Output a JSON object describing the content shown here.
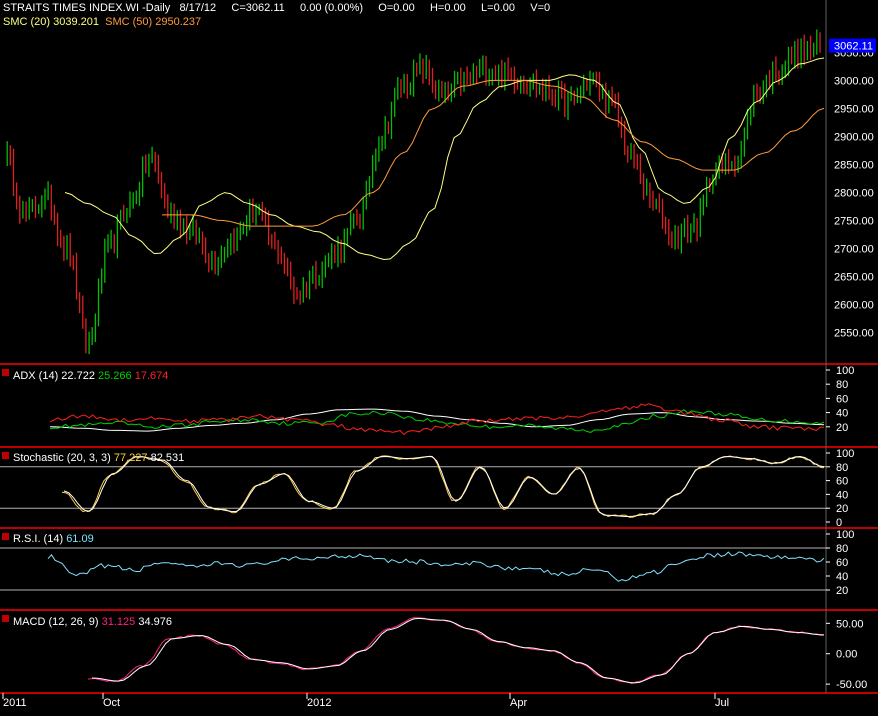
{
  "header": {
    "title": "STRAITS TIMES INDEX.WI -Daily",
    "date": "8/17/12",
    "close": "C=3062.11",
    "change": "0.00 (0.00%)",
    "open": "O=0.00",
    "high": "H=0.00",
    "low": "L=0.00",
    "volume": "V=0",
    "sma20_label": "SMC (20)",
    "sma20_value": "3039.201",
    "sma50_label": "SMC (50)",
    "sma50_value": "2950.237",
    "last_price": "3062.11"
  },
  "colors": {
    "up": "#00c000",
    "down": "#e02020",
    "sma20": "#ffff80",
    "sma50": "#ff9a3c",
    "separator": "#c00000",
    "price_box": "#0000ff",
    "adx": "#ffffff",
    "dip": "#00d000",
    "dim": "#ff2020",
    "stoch_k": "#ffd040",
    "stoch_d": "#ffffff",
    "rsi": "#80e0ff",
    "macd": "#ffffff",
    "macd_signal": "#ff2080"
  },
  "panels": {
    "adx": {
      "name": "ADX (14)",
      "adx": "22.722",
      "dip": "25.266",
      "dim": "17.674",
      "ticks": [
        "100",
        "80",
        "60",
        "40",
        "20"
      ]
    },
    "stoch": {
      "name": "Stochastic (20, 3, 3)",
      "k": "77.227",
      "d": "82.531",
      "ticks": [
        "100",
        "80",
        "60",
        "40",
        "20",
        "0"
      ]
    },
    "rsi": {
      "name": "R.S.I. (14)",
      "value": "61.09",
      "ticks": [
        "100",
        "80",
        "60",
        "40",
        "20"
      ]
    },
    "macd": {
      "name": "MACD (12, 26, 9)",
      "macd": "31.125",
      "signal": "34.976",
      "ticks": [
        "50.00",
        "0.00",
        "-50.00"
      ]
    }
  },
  "x_axis": [
    "2011",
    "Oct",
    "2012",
    "Apr",
    "Jul"
  ],
  "chart_data": {
    "type": "candlestick",
    "title": "STRAITS TIMES INDEX.WI -Daily",
    "x_range": [
      "2011-08",
      "2012-08-17"
    ],
    "ylim": [
      2510,
      3090
    ],
    "price_ticks": [
      "3050.00",
      "3000.00",
      "2950.00",
      "2900.00",
      "2850.00",
      "2800.00",
      "2750.00",
      "2700.00",
      "2650.00",
      "2600.00",
      "2550.00"
    ],
    "price_anchors": [
      2870,
      2760,
      2790,
      2700,
      2530,
      2700,
      2780,
      2860,
      2760,
      2730,
      2680,
      2720,
      2770,
      2700,
      2620,
      2660,
      2700,
      2760,
      2900,
      2990,
      3020,
      2970,
      3000,
      3020,
      3010,
      3000,
      2980,
      2960,
      3000,
      2960,
      2860,
      2780,
      2720,
      2740,
      2840,
      2860,
      2980,
      3020,
      3050,
      3060
    ],
    "series": [
      {
        "name": "SMC (20)",
        "values": [
          2800,
          2780,
          2760,
          2720,
          2690,
          2720,
          2780,
          2800,
          2780,
          2760,
          2740,
          2730,
          2710,
          2690,
          2680,
          2710,
          2770,
          2900,
          2960,
          2990,
          3000,
          3000,
          3010,
          3000,
          2960,
          2880,
          2800,
          2780,
          2810,
          2900,
          2960,
          3000,
          3030,
          3040
        ]
      },
      {
        "name": "SMC (50)",
        "values": [
          2760,
          2760,
          2750,
          2740,
          2740,
          2740,
          2760,
          2800,
          2870,
          2950,
          2990,
          3000,
          3000,
          2990,
          2970,
          2930,
          2890,
          2860,
          2840,
          2840,
          2870,
          2910,
          2950
        ]
      },
      {
        "name": "ADX",
        "values": [
          20,
          18,
          15,
          14,
          18,
          22,
          25,
          30,
          38,
          44,
          45,
          42,
          35,
          30,
          25,
          20,
          22,
          30,
          38,
          40,
          34,
          30,
          28,
          25,
          23
        ]
      },
      {
        "name": "+DI",
        "values": [
          20,
          22,
          25,
          20,
          22,
          28,
          30,
          25,
          26,
          38,
          40,
          30,
          25,
          20,
          22,
          18,
          15,
          22,
          35,
          42,
          38,
          30,
          28,
          25
        ]
      },
      {
        "name": "-DI",
        "values": [
          30,
          35,
          30,
          32,
          28,
          30,
          35,
          30,
          22,
          15,
          12,
          18,
          28,
          30,
          32,
          35,
          45,
          50,
          40,
          30,
          20,
          18,
          17
        ]
      },
      {
        "name": "Stochastic %K",
        "values": [
          45,
          15,
          70,
          95,
          90,
          60,
          20,
          15,
          55,
          70,
          30,
          20,
          75,
          95,
          92,
          95,
          30,
          80,
          20,
          65,
          40,
          78,
          10,
          8,
          12,
          40,
          80,
          95,
          92,
          85,
          95,
          80
        ]
      },
      {
        "name": "R.S.I.",
        "values": [
          68,
          40,
          55,
          48,
          60,
          52,
          58,
          55,
          62,
          65,
          68,
          70,
          62,
          60,
          55,
          58,
          52,
          48,
          42,
          50,
          35,
          45,
          60,
          70,
          72,
          68,
          66,
          62
        ]
      },
      {
        "name": "MACD",
        "values": [
          -40,
          -45,
          -20,
          25,
          30,
          15,
          -10,
          -15,
          -25,
          -20,
          5,
          40,
          58,
          55,
          40,
          20,
          10,
          5,
          -15,
          -40,
          -48,
          -35,
          0,
          35,
          45,
          40,
          35,
          31
        ]
      }
    ]
  }
}
